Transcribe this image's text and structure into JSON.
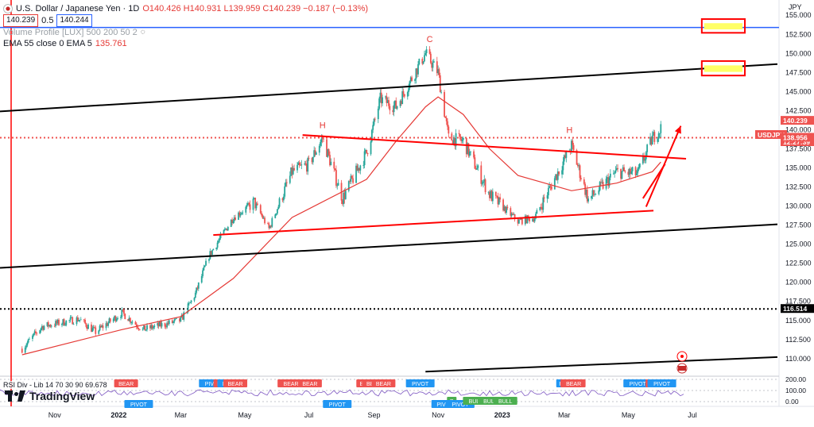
{
  "legend": {
    "symbol_title": "U.S. Dollar / Japanese Yen · 1D",
    "ohlc": "O140.426 H140.931 L139.959 C140.239 −0.187 (−0.13%)",
    "bid": "140.239",
    "spread": "0.5",
    "ask": "140.244",
    "volume_profile": "Volume Profile [LUX] 500 200 50 2",
    "ema_label": "EMA 55 close 0 EMA 5",
    "ema_value": "135.761",
    "rsi_label": "RSI Div - Lib 14 70 30 90",
    "rsi_value": "69.678"
  },
  "branding": {
    "name": "TradingView"
  },
  "axis": {
    "currency_label": "JPY"
  },
  "colors": {
    "up": "#26a69a",
    "down": "#ef5350",
    "ema": "#e53935",
    "trend": "#000000",
    "accent_red": "#ff0000",
    "blue_line": "#2962ff",
    "highlight": "#ffff66"
  },
  "chart_data": {
    "type": "candlestick",
    "symbol": "USDJPY",
    "timeframe": "1D",
    "y_axis": {
      "ticks": [
        155.0,
        152.5,
        150.0,
        147.5,
        145.0,
        142.5,
        140.0,
        137.5,
        135.0,
        132.5,
        130.0,
        127.5,
        125.0,
        122.5,
        120.0,
        117.5,
        115.0,
        112.5,
        110.0
      ],
      "ylim": [
        107.8,
        157.0
      ],
      "position": "right"
    },
    "x_axis": {
      "ticks": [
        "Nov",
        "2022",
        "Mar",
        "May",
        "Jul",
        "Sep",
        "Nov",
        "2023",
        "Mar",
        "May",
        "Jul"
      ]
    },
    "price_tags": [
      {
        "label": "USDJPY",
        "value": null,
        "color": "#ef5350"
      },
      {
        "label": "140.239",
        "value": 140.239,
        "color": "#ef5350"
      },
      {
        "label": "12:27:39",
        "value": null,
        "color": "#ef5350"
      },
      {
        "label": "138.956",
        "value": 138.956,
        "color": "#ef5350"
      },
      {
        "label": "116.514",
        "value": 116.514,
        "color": "#000000"
      }
    ],
    "horizontal_lines": [
      {
        "value": 153.4,
        "style": "solid",
        "color": "#2962ff"
      },
      {
        "value": 138.956,
        "style": "dotted",
        "color": "#ef5350"
      },
      {
        "value": 116.514,
        "style": "dotted",
        "color": "#000000"
      }
    ],
    "close_series_points": [
      [
        "2021-10-01",
        111.3
      ],
      [
        "2021-10-20",
        114.2
      ],
      [
        "2021-11-24",
        115.2
      ],
      [
        "2021-12-10",
        113.5
      ],
      [
        "2022-01-04",
        116.0
      ],
      [
        "2022-01-24",
        113.8
      ],
      [
        "2022-03-01",
        115.0
      ],
      [
        "2022-03-15",
        118.5
      ],
      [
        "2022-03-28",
        123.5
      ],
      [
        "2022-04-20",
        128.5
      ],
      [
        "2022-05-10",
        130.5
      ],
      [
        "2022-05-24",
        127.0
      ],
      [
        "2022-06-15",
        134.5
      ],
      [
        "2022-07-01",
        135.5
      ],
      [
        "2022-07-14",
        138.9
      ],
      [
        "2022-08-02",
        131.0
      ],
      [
        "2022-08-25",
        137.0
      ],
      [
        "2022-09-07",
        144.0
      ],
      [
        "2022-09-22",
        143.0
      ],
      [
        "2022-10-20",
        150.0
      ],
      [
        "2022-11-01",
        147.5
      ],
      [
        "2022-11-11",
        138.9
      ],
      [
        "2022-11-25",
        138.5
      ],
      [
        "2022-12-20",
        131.5
      ],
      [
        "2023-01-16",
        128.0
      ],
      [
        "2023-02-01",
        128.5
      ],
      [
        "2023-03-08",
        137.9
      ],
      [
        "2023-03-24",
        130.8
      ],
      [
        "2023-04-20",
        134.5
      ],
      [
        "2023-05-10",
        134.2
      ],
      [
        "2023-05-24",
        138.9
      ],
      [
        "2023-06-01",
        140.2
      ]
    ],
    "ema_55_points": [
      [
        "2021-10-01",
        110.5
      ],
      [
        "2022-01-04",
        113.8
      ],
      [
        "2022-03-01",
        115.5
      ],
      [
        "2022-04-20",
        120.5
      ],
      [
        "2022-06-15",
        128.5
      ],
      [
        "2022-08-25",
        133.5
      ],
      [
        "2022-09-22",
        138.5
      ],
      [
        "2022-10-20",
        143.0
      ],
      [
        "2022-11-01",
        144.3
      ],
      [
        "2022-11-25",
        142.0
      ],
      [
        "2022-12-20",
        137.5
      ],
      [
        "2023-01-16",
        134.0
      ],
      [
        "2023-03-08",
        132.0
      ],
      [
        "2023-04-20",
        133.0
      ],
      [
        "2023-05-24",
        134.5
      ],
      [
        "2023-06-01",
        135.76
      ]
    ],
    "annotations": [
      {
        "type": "text",
        "text": "H",
        "x": "2022-07-14",
        "y": 140.2,
        "color": "#e53935"
      },
      {
        "type": "text",
        "text": "C",
        "x": "2022-10-24",
        "y": 151.5,
        "color": "#e53935"
      },
      {
        "type": "text",
        "text": "H",
        "x": "2023-03-06",
        "y": 139.6,
        "color": "#e53935"
      },
      {
        "type": "trendline",
        "from": [
          "2022-06-25",
          139.3
        ],
        "to": [
          "2023-06-25",
          136.2
        ],
        "color": "#ff0000"
      },
      {
        "type": "trendline",
        "from": [
          "2022-04-01",
          126.2
        ],
        "to": [
          "2023-05-25",
          129.4
        ],
        "color": "#ff0000"
      },
      {
        "type": "trendline",
        "from": [
          "2023-05-15",
          131.0
        ],
        "to": [
          "2023-06-05",
          135.5
        ],
        "color": "#ff0000"
      },
      {
        "type": "arrow",
        "from": [
          "2023-05-18",
          129.9
        ],
        "to": [
          "2023-06-20",
          140.5
        ],
        "color": "#ff0000"
      },
      {
        "type": "trendline",
        "from": [
          "2021-09-10",
          142.4
        ],
        "to": [
          "2023-09-20",
          148.6
        ],
        "color": "#000000"
      },
      {
        "type": "trendline",
        "from": [
          "2021-09-10",
          121.9
        ],
        "to": [
          "2023-09-20",
          127.6
        ],
        "color": "#000000"
      },
      {
        "type": "trendline",
        "from": [
          "2022-10-20",
          108.3
        ],
        "to": [
          "2023-09-20",
          110.2
        ],
        "color": "#000000"
      },
      {
        "type": "rectangle",
        "from": [
          "2023-07-10",
          154.5
        ],
        "to": [
          "2023-08-20",
          152.7
        ],
        "color": "#ff0000"
      },
      {
        "type": "rectangle",
        "from": [
          "2023-07-10",
          149.0
        ],
        "to": [
          "2023-08-20",
          147.1
        ],
        "color": "#ff0000"
      }
    ],
    "rsi_labels": [
      {
        "text": "BEAR",
        "x": "2022-01-08",
        "color": "#ef5350"
      },
      {
        "text": "PIVOT",
        "x": "2022-01-20",
        "color": "#2196f3"
      },
      {
        "text": "PIVOT",
        "x": "2022-04-01",
        "color": "#2196f3"
      },
      {
        "text": "BE",
        "x": "2022-04-08",
        "color": "#ef5350"
      },
      {
        "text": "PIV",
        "x": "2022-04-14",
        "color": "#2196f3"
      },
      {
        "text": "BEAR",
        "x": "2022-04-22",
        "color": "#ef5350"
      },
      {
        "text": "BE",
        "x": "2022-06-08",
        "color": "#ef5350"
      },
      {
        "text": "BEAR",
        "x": "2022-06-14",
        "color": "#ef5350"
      },
      {
        "text": "BEAR",
        "x": "2022-07-02",
        "color": "#ef5350"
      },
      {
        "text": "PIVOT",
        "x": "2022-07-28",
        "color": "#2196f3"
      },
      {
        "text": "BE",
        "x": "2022-08-22",
        "color": "#ef5350"
      },
      {
        "text": "BEAR",
        "x": "2022-09-01",
        "color": "#ef5350"
      },
      {
        "text": "BEAR",
        "x": "2022-09-10",
        "color": "#ef5350"
      },
      {
        "text": "PIVOT",
        "x": "2022-10-15",
        "color": "#2196f3"
      },
      {
        "text": "PIVO",
        "x": "2022-11-06",
        "color": "#2196f3"
      },
      {
        "text": "B",
        "x": "2022-11-14",
        "color": "#4caf50"
      },
      {
        "text": "PIVOT",
        "x": "2022-11-22",
        "color": "#2196f3"
      },
      {
        "text": "BULI",
        "x": "2022-12-06",
        "color": "#4caf50"
      },
      {
        "text": "BULI",
        "x": "2022-12-20",
        "color": "#4caf50"
      },
      {
        "text": "BULL",
        "x": "2023-01-04",
        "color": "#4caf50"
      },
      {
        "text": "P",
        "x": "2023-02-26",
        "color": "#2196f3"
      },
      {
        "text": "B",
        "x": "2023-03-02",
        "color": "#ef5350"
      },
      {
        "text": "BEAR",
        "x": "2023-03-10",
        "color": "#ef5350"
      },
      {
        "text": "PIVOT",
        "x": "2023-05-10",
        "color": "#2196f3"
      },
      {
        "text": "B",
        "x": "2023-05-22",
        "color": "#ef5350"
      },
      {
        "text": "PIVOT",
        "x": "2023-06-02",
        "color": "#2196f3"
      }
    ],
    "rsi_axis": {
      "ticks": [
        200.0,
        100.0,
        0.0
      ]
    },
    "grid": false,
    "legend_position": "top-left"
  }
}
